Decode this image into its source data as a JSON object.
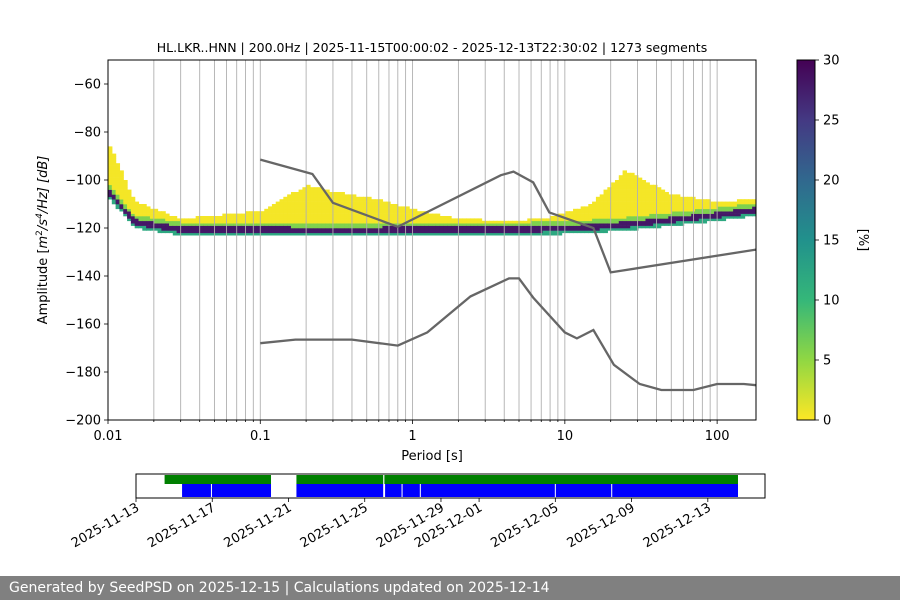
{
  "chart_data": {
    "type": "heatmap",
    "title": "HL.LKR..HNN | 200.0Hz | 2025-11-15T00:00:02 - 2025-12-13T22:30:02 | 1273 segments",
    "xlabel": "Period [s]",
    "ylabel_parts": {
      "pre": "Amplitude [",
      "m": "m",
      "sup1": "2",
      "mid": "/s",
      "sup2": "4",
      "post": "/Hz] [dB]"
    },
    "x_scale": "log",
    "xlim": [
      0.01,
      180
    ],
    "ylim": [
      -200,
      -50
    ],
    "x_ticks": [
      0.01,
      0.1,
      1,
      10,
      100
    ],
    "x_tick_labels": [
      "0.01",
      "0.1",
      "1",
      "10",
      "100"
    ],
    "y_ticks": [
      -200,
      -180,
      -160,
      -140,
      -120,
      -100,
      -80,
      -60
    ],
    "y_tick_labels": [
      "−200",
      "−180",
      "−160",
      "−140",
      "−120",
      "−100",
      "−80",
      "−60"
    ],
    "grid": "x-minor",
    "colormap": "viridis_r",
    "colorbar": {
      "label": "[%]",
      "min": 0,
      "max": 30,
      "ticks": [
        0,
        5,
        10,
        15,
        20,
        25,
        30
      ],
      "tick_labels": [
        "0",
        "5",
        "10",
        "15",
        "20",
        "25",
        "30"
      ]
    },
    "density_mode_db": [
      [
        0.01,
        -105
      ],
      [
        0.015,
        -118
      ],
      [
        0.03,
        -121
      ],
      [
        0.1,
        -121
      ],
      [
        0.3,
        -121.5
      ],
      [
        1,
        -121
      ],
      [
        3,
        -121
      ],
      [
        6,
        -121
      ],
      [
        15,
        -120
      ],
      [
        25,
        -119
      ],
      [
        50,
        -117
      ],
      [
        100,
        -115
      ],
      [
        180,
        -113
      ]
    ],
    "density_spread_db": [
      [
        0.01,
        20
      ],
      [
        0.015,
        8
      ],
      [
        0.03,
        4
      ],
      [
        0.1,
        7
      ],
      [
        0.2,
        18
      ],
      [
        0.35,
        15
      ],
      [
        0.6,
        12
      ],
      [
        1,
        8
      ],
      [
        2,
        4
      ],
      [
        4,
        3
      ],
      [
        8,
        4
      ],
      [
        15,
        9
      ],
      [
        25,
        22
      ],
      [
        50,
        10
      ],
      [
        100,
        5
      ],
      [
        180,
        4
      ]
    ],
    "series": [
      {
        "name": "",
        "color": "#666666",
        "points": [
          [
            0.1,
            -91.5
          ],
          [
            0.22,
            -97.5
          ],
          [
            0.3,
            -109.5
          ],
          [
            0.8,
            -119.5
          ],
          [
            3.8,
            -98
          ],
          [
            4.6,
            -96.5
          ],
          [
            6.2,
            -101
          ],
          [
            7.9,
            -113.5
          ],
          [
            15.4,
            -120
          ],
          [
            20,
            -138.5
          ],
          [
            180,
            -129
          ]
        ]
      },
      {
        "name": "",
        "color": "#666666",
        "points": [
          [
            0.1,
            -168
          ],
          [
            0.17,
            -166.5
          ],
          [
            0.4,
            -166.5
          ],
          [
            0.8,
            -169
          ],
          [
            1.25,
            -163.5
          ],
          [
            2.4,
            -148.5
          ],
          [
            4.3,
            -141
          ],
          [
            5,
            -141
          ],
          [
            6.2,
            -149
          ],
          [
            10,
            -163.5
          ],
          [
            12,
            -166
          ],
          [
            15.4,
            -162.5
          ],
          [
            21,
            -177
          ],
          [
            31,
            -185
          ],
          [
            43,
            -187.5
          ],
          [
            70,
            -187.5
          ],
          [
            100,
            -185
          ],
          [
            150,
            -185
          ],
          [
            180,
            -185.5
          ]
        ]
      }
    ]
  },
  "timeline": {
    "date_ticks": [
      "2025-11-13",
      "2025-11-17",
      "2025-11-21",
      "2025-11-25",
      "2025-11-29",
      "2025-12-01",
      "2025-12-05",
      "2025-12-09",
      "2025-12-13"
    ],
    "range": [
      "2025-11-13",
      "2025-12-16"
    ],
    "green_spans": [
      [
        "2025-11-14T12:00",
        "2025-11-20T02:00"
      ],
      [
        "2025-11-21T10:00",
        "2025-12-14T14:00"
      ]
    ],
    "blue_spans": [
      [
        "2025-11-15T10:00",
        "2025-11-20T02:00"
      ],
      [
        "2025-11-21T10:00",
        "2025-12-14T14:00"
      ]
    ],
    "blue_gaps": [
      "2025-11-16T23:00",
      "2025-11-26T01:00",
      "2025-11-26T23:00",
      "2025-11-27T22:00",
      "2025-12-05T00:00",
      "2025-12-07T23:00"
    ],
    "green_gaps": [
      "2025-11-26T00:00"
    ],
    "colors": {
      "green": "#008000",
      "blue": "#0000ff"
    }
  },
  "footer": {
    "text": "Generated by SeedPSD on 2025-12-15 | Calculations updated on 2025-12-14"
  }
}
